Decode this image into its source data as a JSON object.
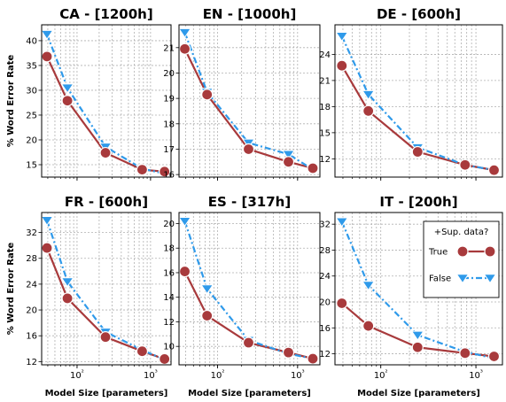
{
  "chart_data": {
    "type": "line",
    "x_scale": "log",
    "x_ticks": [
      {
        "value": 100,
        "label": "10²"
      },
      {
        "value": 1000,
        "label": "10³"
      }
    ],
    "xlim": [
      33,
      1900
    ],
    "xlabel": "Model Size [parameters]",
    "ylabel": "% Word Error Rate",
    "grid": true,
    "legend": {
      "title": "+Sup. data?",
      "placement": "top-right of IT panel",
      "entries": [
        {
          "label": "True",
          "color": "#a83a3c",
          "marker": "circle",
          "linestyle": "solid"
        },
        {
          "label": "False",
          "color": "#2f9aea",
          "marker": "triangle-down",
          "linestyle": "dashdot"
        }
      ]
    },
    "panels": [
      {
        "title": "CA - [1200h]",
        "ylim": [
          12.5,
          43.2
        ],
        "yticks": [
          15,
          20,
          25,
          30,
          35,
          40
        ],
        "series": [
          {
            "name": "True",
            "x": [
              39,
              74,
              244,
              769,
              1550
            ],
            "y": [
              36.8,
              27.9,
              17.4,
              14.0,
              13.6
            ]
          },
          {
            "name": "False",
            "x": [
              39,
              74,
              244,
              769,
              1550
            ],
            "y": [
              41.3,
              30.5,
              18.6,
              14.2,
              13.2
            ]
          }
        ]
      },
      {
        "title": "EN - [1000h]",
        "ylim": [
          15.9,
          21.9
        ],
        "yticks": [
          16,
          17,
          18,
          19,
          20,
          21
        ],
        "series": [
          {
            "name": "True",
            "x": [
              39,
              74,
              244,
              769,
              1550
            ],
            "y": [
              20.95,
              19.15,
              17.0,
              16.5,
              16.25
            ]
          },
          {
            "name": "False",
            "x": [
              39,
              74,
              244,
              769,
              1550
            ],
            "y": [
              21.6,
              19.25,
              17.25,
              16.8,
              16.2
            ]
          }
        ]
      },
      {
        "title": "DE - [600h]",
        "ylim": [
          9.9,
          27.4
        ],
        "yticks": [
          12,
          15,
          18,
          21,
          24
        ],
        "series": [
          {
            "name": "True",
            "x": [
              39,
              74,
              244,
              769,
              1550
            ],
            "y": [
              22.7,
              17.5,
              12.8,
              11.3,
              10.7
            ]
          },
          {
            "name": "False",
            "x": [
              39,
              74,
              244,
              769,
              1550
            ],
            "y": [
              26.1,
              19.4,
              13.3,
              11.3,
              10.7
            ]
          }
        ]
      },
      {
        "title": "FR - [600h]",
        "ylim": [
          11.5,
          35.1
        ],
        "yticks": [
          12,
          16,
          20,
          24,
          28,
          32
        ],
        "series": [
          {
            "name": "True",
            "x": [
              39,
              74,
              244,
              769,
              1550
            ],
            "y": [
              29.6,
              21.8,
              15.8,
              13.6,
              12.4
            ]
          },
          {
            "name": "False",
            "x": [
              39,
              74,
              244,
              769,
              1550
            ],
            "y": [
              33.9,
              24.4,
              16.6,
              13.8,
              12.3
            ]
          }
        ]
      },
      {
        "title": "ES - [317h]",
        "ylim": [
          8.5,
          20.9
        ],
        "yticks": [
          10,
          12,
          14,
          16,
          18,
          20
        ],
        "series": [
          {
            "name": "True",
            "x": [
              39,
              74,
              244,
              769,
              1550
            ],
            "y": [
              16.1,
              12.5,
              10.3,
              9.5,
              9.0
            ]
          },
          {
            "name": "False",
            "x": [
              39,
              74,
              244,
              769,
              1550
            ],
            "y": [
              20.2,
              14.7,
              10.5,
              9.4,
              9.0
            ]
          }
        ]
      },
      {
        "title": "IT - [200h]",
        "ylim": [
          10.3,
          33.8
        ],
        "yticks": [
          12,
          16,
          20,
          24,
          28,
          32
        ],
        "series": [
          {
            "name": "True",
            "x": [
              39,
              74,
              244,
              769,
              1550
            ],
            "y": [
              19.8,
              16.3,
              13.0,
              12.1,
              11.6
            ]
          },
          {
            "name": "False",
            "x": [
              39,
              74,
              244,
              769,
              1550
            ],
            "y": [
              32.4,
              22.6,
              14.9,
              12.3,
              11.3
            ]
          }
        ]
      }
    ]
  }
}
